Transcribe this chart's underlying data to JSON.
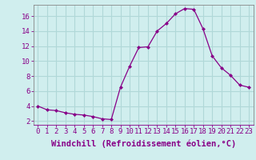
{
  "x": [
    0,
    1,
    2,
    3,
    4,
    5,
    6,
    7,
    8,
    9,
    10,
    11,
    12,
    13,
    14,
    15,
    16,
    17,
    18,
    19,
    20,
    21,
    22,
    23
  ],
  "y": [
    4.0,
    3.5,
    3.4,
    3.1,
    2.9,
    2.8,
    2.6,
    2.3,
    2.2,
    6.5,
    9.3,
    11.8,
    11.9,
    14.0,
    15.0,
    16.3,
    17.0,
    16.9,
    14.3,
    10.7,
    9.1,
    8.1,
    6.8,
    6.5
  ],
  "line_color": "#880088",
  "marker": "D",
  "marker_size": 2.5,
  "bg_color": "#d0eeee",
  "grid_color": "#b0d8d8",
  "xlabel": "Windchill (Refroidissement éolien,°C)",
  "xlabel_fontsize": 7.5,
  "tick_label_fontsize": 6.5,
  "xlim": [
    -0.5,
    23.5
  ],
  "ylim": [
    1.5,
    17.5
  ],
  "yticks": [
    2,
    4,
    6,
    8,
    10,
    12,
    14,
    16
  ],
  "xticks": [
    0,
    1,
    2,
    3,
    4,
    5,
    6,
    7,
    8,
    9,
    10,
    11,
    12,
    13,
    14,
    15,
    16,
    17,
    18,
    19,
    20,
    21,
    22,
    23
  ],
  "spine_color": "#888888"
}
